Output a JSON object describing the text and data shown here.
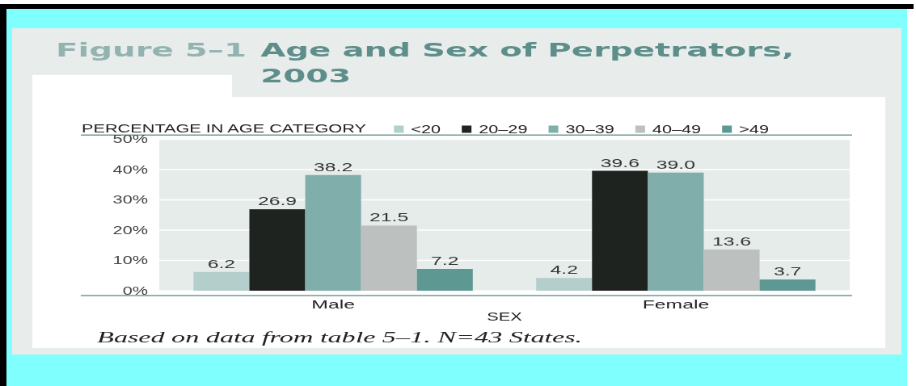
{
  "chart_data": {
    "type": "bar",
    "title": "Figure 5–1 Age and Sex of Perpetrators, 2003",
    "xlabel": "SEX",
    "ylabel": "PERCENTAGE IN AGE CATEGORY",
    "categories": [
      "Male",
      "Female"
    ],
    "series": [
      {
        "name": "<20",
        "color": "#b3cecb",
        "values": [
          6.2,
          4.2
        ],
        "value_labels": [
          "6.2",
          "4.2"
        ]
      },
      {
        "name": "20–29",
        "color": "#1f2320",
        "values": [
          26.9,
          39.6
        ],
        "value_labels": [
          "26.9",
          "39.6"
        ]
      },
      {
        "name": "30–39",
        "color": "#80aeaa",
        "values": [
          38.2,
          39.0
        ],
        "value_labels": [
          "38.2",
          "39.0"
        ]
      },
      {
        "name": "40–49",
        "color": "#bcc0bf",
        "values": [
          21.5,
          13.6
        ],
        "value_labels": [
          "21.5",
          "13.6"
        ]
      },
      {
        "name": ">49",
        "color": "#5e9893",
        "values": [
          7.2,
          3.7
        ],
        "value_labels": [
          "7.2",
          "3.7"
        ]
      }
    ],
    "ylim": [
      0,
      50
    ],
    "yticks": [
      {
        "value": 0,
        "label": "0%"
      },
      {
        "value": 10,
        "label": "10%"
      },
      {
        "value": 20,
        "label": "20%"
      },
      {
        "value": 30,
        "label": "30%"
      },
      {
        "value": 40,
        "label": "40%"
      },
      {
        "value": 50,
        "label": "50%"
      }
    ],
    "grid": "y",
    "legend": "top right",
    "annotations": [
      "Based on data from table 5–1. N=43 States."
    ]
  }
}
